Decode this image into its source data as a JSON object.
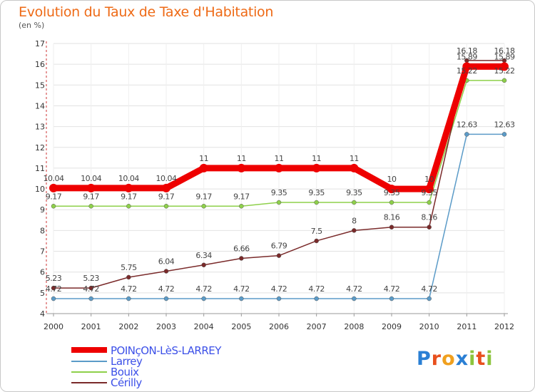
{
  "title": "Evolution du Taux de Taxe d'Habitation",
  "unit": "(en %)",
  "logo": {
    "text": "Proxiti",
    "letters": [
      {
        "ch": "P",
        "color": "#2a7fd4"
      },
      {
        "ch": "r",
        "color": "#e8501e"
      },
      {
        "ch": "o",
        "color": "#f0a01e"
      },
      {
        "ch": "x",
        "color": "#2a7fd4"
      },
      {
        "ch": "i",
        "color": "#8cc43c"
      },
      {
        "ch": "t",
        "color": "#e8501e"
      },
      {
        "ch": "i",
        "color": "#8cc43c"
      }
    ]
  },
  "chart_data": {
    "type": "line",
    "title": "Evolution du Taux de Taxe d'Habitation",
    "ylabel": "(en %)",
    "xlabel": "",
    "x": [
      "2000",
      "2001",
      "2002",
      "2003",
      "2004",
      "2005",
      "2006",
      "2007",
      "2008",
      "2009",
      "2010",
      "2011",
      "2012"
    ],
    "ylim": [
      4,
      17
    ],
    "yticks": [
      "4",
      "5",
      "6",
      "7",
      "8",
      "9",
      "10",
      "11",
      "12",
      "13",
      "14",
      "15",
      "16",
      "17"
    ],
    "series": [
      {
        "name": "POINçON-LèS-LARREY",
        "color": "#ee0000",
        "values": [
          10.04,
          10.04,
          10.04,
          10.04,
          11,
          11,
          11,
          11,
          11,
          10,
          10,
          15.89,
          15.89
        ],
        "labels": [
          "10.04",
          "10.04",
          "10.04",
          "10.04",
          "11",
          "11",
          "11",
          "11",
          "11",
          "10",
          "10",
          "15.89",
          "15.89"
        ]
      },
      {
        "name": "Larrey",
        "color": "#5b9bc8",
        "values": [
          4.72,
          4.72,
          4.72,
          4.72,
          4.72,
          4.72,
          4.72,
          4.72,
          4.72,
          4.72,
          4.72,
          12.63,
          12.63
        ],
        "labels": [
          "4.72",
          "4.72",
          "4.72",
          "4.72",
          "4.72",
          "4.72",
          "4.72",
          "4.72",
          "4.72",
          "4.72",
          "4.72",
          "12.63",
          "12.63"
        ]
      },
      {
        "name": "Bouix",
        "color": "#8ed04a",
        "values": [
          9.17,
          9.17,
          9.17,
          9.17,
          9.17,
          9.17,
          9.35,
          9.35,
          9.35,
          9.35,
          9.35,
          15.22,
          15.22
        ],
        "labels": [
          "9.17",
          "9.17",
          "9.17",
          "9.17",
          "9.17",
          "9.17",
          "9.35",
          "9.35",
          "9.35",
          "9.35",
          "9.35",
          "15.22",
          "15.22"
        ]
      },
      {
        "name": "Cérilly",
        "color": "#7a2a2a",
        "values": [
          5.23,
          5.23,
          5.75,
          6.04,
          6.34,
          6.66,
          6.79,
          7.5,
          8,
          8.16,
          8.16,
          16.18,
          16.18
        ],
        "labels": [
          "5.23",
          "5.23",
          "5.75",
          "6.04",
          "6.34",
          "6.66",
          "6.79",
          "7.5",
          "8",
          "8.16",
          "8.16",
          "16.18",
          "16.18"
        ]
      }
    ]
  }
}
